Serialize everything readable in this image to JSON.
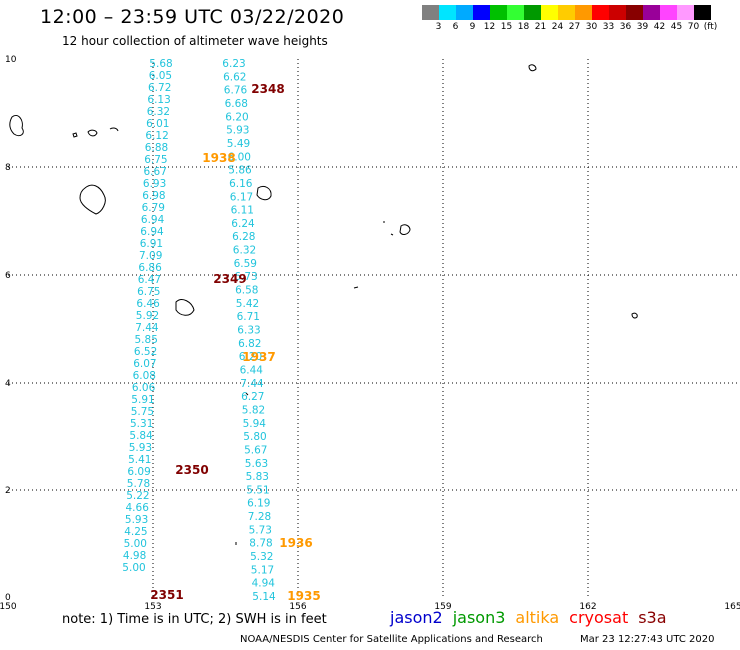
{
  "header": {
    "title": "12:00 – 23:59 UTC 03/22/2020",
    "subtitle": "12 hour collection of altimeter wave heights"
  },
  "legend": {
    "colors": [
      "#808080",
      "#00e5ff",
      "#00aaff",
      "#0000ff",
      "#00c000",
      "#33ff33",
      "#009900",
      "#ffff00",
      "#ffcc00",
      "#ff9900",
      "#ff0000",
      "#cc0000",
      "#880000",
      "#990099",
      "#ff44ff",
      "#ff99ff",
      "#000000"
    ],
    "labels": [
      "3",
      "6",
      "9",
      "12",
      "15",
      "18",
      "21",
      "24",
      "27",
      "30",
      "33",
      "36",
      "39",
      "42",
      "45",
      "70",
      "(ft)"
    ]
  },
  "axes": {
    "x_ticks": [
      "150",
      "153",
      "156",
      "159",
      "162",
      "165"
    ],
    "y_ticks": [
      "0",
      "2",
      "4",
      "6",
      "8",
      "10"
    ]
  },
  "colors": {
    "wave_text": "#22c4dc",
    "pass_dark_red": "#800000",
    "pass_orange": "#ff9900"
  },
  "tracks": [
    {
      "name": "left-track",
      "values": [
        "5.68",
        "6.05",
        "6.72",
        "6.13",
        "6.32",
        "6.01",
        "6.12",
        "6.88",
        "6.75",
        "6.67",
        "6.93",
        "6.98",
        "6.79",
        "6.94",
        "6.94",
        "6.91",
        "7.09",
        "6.86",
        "6.47",
        "6.75",
        "6.46",
        "5.92",
        "7.44",
        "5.85",
        "6.52",
        "6.07",
        "6.08",
        "6.06",
        "5.91",
        "5.75",
        "5.31",
        "5.84",
        "5.93",
        "5.41",
        "6.09",
        "5.78",
        "5.22",
        "4.66",
        "5.93",
        "4.25",
        "5.00",
        "4.98",
        "5.00"
      ]
    },
    {
      "name": "right-track",
      "values": [
        "6.23",
        "6.62",
        "6.76",
        "6.68",
        "6.20",
        "5.93",
        "5.49",
        "6.00",
        "5.86",
        "6.16",
        "6.17",
        "6.11",
        "6.24",
        "6.28",
        "6.32",
        "6.59",
        "6.73",
        "6.58",
        "5.42",
        "6.71",
        "6.33",
        "6.82",
        "6.20",
        "6.44",
        "7.44",
        "6.27",
        "5.82",
        "5.94",
        "5.80",
        "5.67",
        "5.63",
        "5.83",
        "5.51",
        "6.19",
        "7.28",
        "5.73",
        "8.78",
        "5.32",
        "5.17",
        "4.94",
        "5.14"
      ]
    }
  ],
  "pass_times": [
    {
      "label": "2348",
      "color": "#800000"
    },
    {
      "label": "1938",
      "color": "#ff9900"
    },
    {
      "label": "2349",
      "color": "#800000"
    },
    {
      "label": "1937",
      "color": "#ff9900"
    },
    {
      "label": "2350",
      "color": "#800000"
    },
    {
      "label": "1936",
      "color": "#ff9900"
    },
    {
      "label": "2351",
      "color": "#800000"
    },
    {
      "label": "1935",
      "color": "#ff9900"
    }
  ],
  "footer": {
    "note": "note:  1) Time is in UTC;  2) SWH is in feet",
    "satellites": [
      {
        "label": "jason2",
        "color": "#0000cc"
      },
      {
        "label": "jason3",
        "color": "#009900"
      },
      {
        "label": "altika",
        "color": "#ff9900"
      },
      {
        "label": "cryosat",
        "color": "#ff0000"
      },
      {
        "label": "s3a",
        "color": "#880000"
      }
    ],
    "credit": "NOAA/NESDIS Center for Satellite Applications and Research",
    "timestamp": "Mar 23 12:27:43 UTC 2020"
  }
}
